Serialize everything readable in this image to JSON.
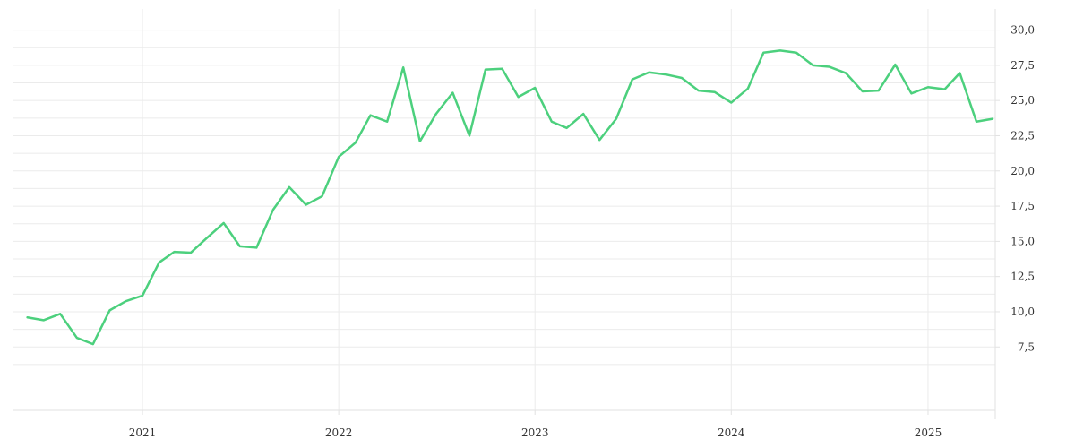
{
  "chart_data": {
    "type": "line",
    "title": "",
    "xlabel": "",
    "ylabel": "",
    "series": [
      {
        "color": "#4cd07d",
        "points": [
          [
            "2020-06-01",
            9.6
          ],
          [
            "2020-07-01",
            9.4
          ],
          [
            "2020-08-01",
            9.85
          ],
          [
            "2020-09-01",
            8.15
          ],
          [
            "2020-10-01",
            7.7
          ],
          [
            "2020-11-01",
            10.1
          ],
          [
            "2020-12-01",
            10.75
          ],
          [
            "2021-01-01",
            11.15
          ],
          [
            "2021-02-01",
            13.5
          ],
          [
            "2021-03-01",
            14.25
          ],
          [
            "2021-04-01",
            14.2
          ],
          [
            "2021-05-01",
            15.25
          ],
          [
            "2021-06-01",
            16.3
          ],
          [
            "2021-07-01",
            14.65
          ],
          [
            "2021-08-01",
            14.55
          ],
          [
            "2021-09-01",
            17.25
          ],
          [
            "2021-10-01",
            18.85
          ],
          [
            "2021-11-01",
            17.6
          ],
          [
            "2021-12-01",
            18.2
          ],
          [
            "2022-01-01",
            21.0
          ],
          [
            "2022-02-01",
            22.0
          ],
          [
            "2022-03-01",
            23.95
          ],
          [
            "2022-04-01",
            23.5
          ],
          [
            "2022-05-01",
            27.35
          ],
          [
            "2022-06-01",
            22.1
          ],
          [
            "2022-07-01",
            24.05
          ],
          [
            "2022-08-01",
            25.55
          ],
          [
            "2022-09-01",
            22.5
          ],
          [
            "2022-10-01",
            27.2
          ],
          [
            "2022-11-01",
            27.25
          ],
          [
            "2022-12-01",
            25.25
          ],
          [
            "2023-01-01",
            25.9
          ],
          [
            "2023-02-01",
            23.5
          ],
          [
            "2023-03-01",
            23.05
          ],
          [
            "2023-04-01",
            24.05
          ],
          [
            "2023-05-01",
            22.2
          ],
          [
            "2023-06-01",
            23.7
          ],
          [
            "2023-07-01",
            26.5
          ],
          [
            "2023-08-01",
            27.0
          ],
          [
            "2023-09-01",
            26.85
          ],
          [
            "2023-10-01",
            26.6
          ],
          [
            "2023-11-01",
            25.7
          ],
          [
            "2023-12-01",
            25.6
          ],
          [
            "2024-01-01",
            24.85
          ],
          [
            "2024-02-01",
            25.85
          ],
          [
            "2024-03-01",
            28.4
          ],
          [
            "2024-04-01",
            28.55
          ],
          [
            "2024-05-01",
            28.4
          ],
          [
            "2024-06-01",
            27.5
          ],
          [
            "2024-07-01",
            27.4
          ],
          [
            "2024-08-01",
            26.95
          ],
          [
            "2024-09-01",
            25.65
          ],
          [
            "2024-10-01",
            25.7
          ],
          [
            "2024-11-01",
            27.55
          ],
          [
            "2024-12-01",
            25.5
          ],
          [
            "2025-01-01",
            25.95
          ],
          [
            "2025-02-01",
            25.8
          ],
          [
            "2025-03-01",
            26.95
          ],
          [
            "2025-04-01",
            23.5
          ],
          [
            "2025-05-01",
            23.7
          ]
        ]
      }
    ],
    "x_range": [
      "2020-05-06",
      "2025-05-06"
    ],
    "y_range": [
      3,
      31.5
    ],
    "y_axis_position": "right",
    "grid": true,
    "x_ticks": [
      {
        "value": "2021-01-01",
        "label": "2021"
      },
      {
        "value": "2022-01-01",
        "label": "2022"
      },
      {
        "value": "2023-01-01",
        "label": "2023"
      },
      {
        "value": "2024-01-01",
        "label": "2024"
      },
      {
        "value": "2025-01-01",
        "label": "2025"
      }
    ],
    "y_ticks": [
      {
        "value": 7.5,
        "label": "7,5"
      },
      {
        "value": 10,
        "label": "10,0"
      },
      {
        "value": 12.5,
        "label": "12,5"
      },
      {
        "value": 15,
        "label": "15,0"
      },
      {
        "value": 17.5,
        "label": "17,5"
      },
      {
        "value": 20,
        "label": "20,0"
      },
      {
        "value": 22.5,
        "label": "22,5"
      },
      {
        "value": 25,
        "label": "25,0"
      },
      {
        "value": 27.5,
        "label": "27,5"
      },
      {
        "value": 30,
        "label": "30,0"
      }
    ]
  }
}
